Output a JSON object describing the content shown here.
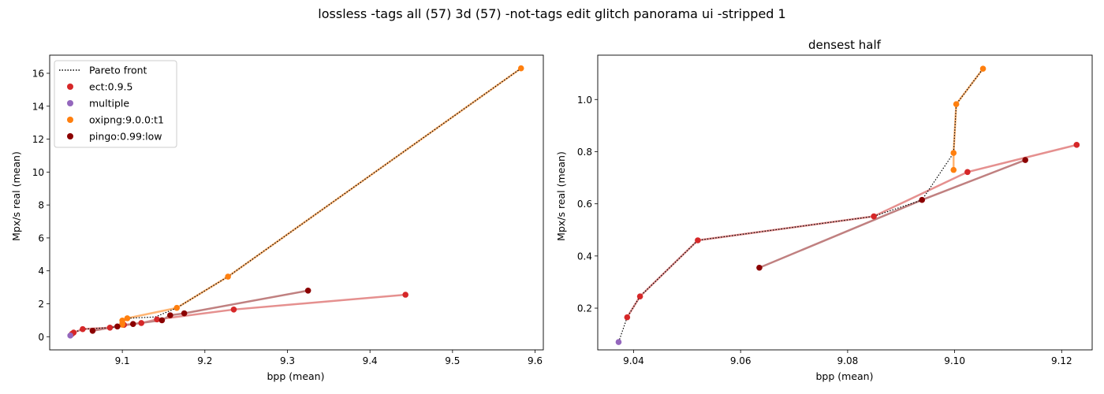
{
  "figure": {
    "suptitle": "lossless -tags all (57) 3d (57) -not-tags edit glitch panorama ui -stripped 1"
  },
  "legend": {
    "pareto_label": "Pareto front",
    "entries": [
      {
        "label": "ect:0.9.5",
        "color": "#d62728"
      },
      {
        "label": "multiple",
        "color": "#9467bd"
      },
      {
        "label": "oxipng:9.0.0:t1",
        "color": "#ff7f0e"
      },
      {
        "label": "pingo:0.99:low",
        "color": "#8b0000"
      }
    ]
  },
  "chart_data": [
    {
      "type": "scatter",
      "title": "",
      "xlabel": "bpp (mean)",
      "ylabel": "Mpx/s real (mean)",
      "xlim": [
        9.012,
        9.61
      ],
      "ylim": [
        -0.8,
        17.1
      ],
      "xticks": [
        9.1,
        9.2,
        9.3,
        9.4,
        9.5,
        9.6
      ],
      "xtick_labels": [
        "9.1",
        "9.2",
        "9.3",
        "9.4",
        "9.5",
        "9.6"
      ],
      "yticks": [
        0,
        2,
        4,
        6,
        8,
        10,
        12,
        14,
        16
      ],
      "ytick_labels": [
        "0",
        "2",
        "4",
        "6",
        "8",
        "10",
        "12",
        "14",
        "16"
      ],
      "grid": false,
      "legend_position": "upper left",
      "series": [
        {
          "name": "ect:0.9.5",
          "color": "#d62728",
          "line_color": "#e5908f",
          "x": [
            9.039,
            9.041,
            9.052,
            9.085,
            9.102,
            9.123,
            9.142,
            9.235,
            9.443
          ],
          "y": [
            0.17,
            0.25,
            0.46,
            0.55,
            0.72,
            0.83,
            1.05,
            1.65,
            2.55
          ]
        },
        {
          "name": "multiple",
          "color": "#9467bd",
          "line_color": "#9467bd",
          "x": [
            9.037
          ],
          "y": [
            0.07
          ]
        },
        {
          "name": "oxipng:9.0.0:t1",
          "color": "#ff7f0e",
          "line_color": "#ffb574",
          "x": [
            9.1,
            9.1,
            9.1,
            9.106,
            9.166,
            9.228,
            9.583
          ],
          "y": [
            0.73,
            0.8,
            0.98,
            1.12,
            1.75,
            3.65,
            16.3
          ]
        },
        {
          "name": "pingo:0.99:low",
          "color": "#8b0000",
          "line_color": "#c08080",
          "x": [
            9.064,
            9.094,
            9.113,
            9.148,
            9.158,
            9.175,
            9.325
          ],
          "y": [
            0.36,
            0.62,
            0.77,
            1.0,
            1.3,
            1.42,
            2.8
          ]
        }
      ],
      "pareto_front": {
        "x": [
          9.037,
          9.039,
          9.041,
          9.052,
          9.085,
          9.094,
          9.1,
          9.1,
          9.106,
          9.14,
          9.166,
          9.228,
          9.583
        ],
        "y": [
          0.07,
          0.17,
          0.25,
          0.46,
          0.55,
          0.62,
          0.8,
          0.98,
          1.12,
          1.2,
          1.75,
          3.65,
          16.3
        ]
      }
    },
    {
      "type": "scatter",
      "title": "densest half",
      "xlabel": "bpp (mean)",
      "ylabel": "Mpx/s real (mean)",
      "xlim": [
        9.0333,
        9.1257
      ],
      "ylim": [
        0.04,
        1.17
      ],
      "xticks": [
        9.04,
        9.06,
        9.08,
        9.1,
        9.12
      ],
      "xtick_labels": [
        "9.04",
        "9.06",
        "9.08",
        "9.10",
        "9.12"
      ],
      "yticks": [
        0.2,
        0.4,
        0.6,
        0.8,
        1.0
      ],
      "ytick_labels": [
        "0.2",
        "0.4",
        "0.6",
        "0.8",
        "1.0"
      ],
      "grid": false,
      "series": [
        {
          "name": "ect:0.9.5",
          "color": "#d62728",
          "line_color": "#e5908f",
          "x": [
            9.0388,
            9.0412,
            9.052,
            9.0849,
            9.1024,
            9.1228
          ],
          "y": [
            0.165,
            0.245,
            0.46,
            0.552,
            0.722,
            0.826
          ]
        },
        {
          "name": "multiple",
          "color": "#9467bd",
          "line_color": "#9467bd",
          "x": [
            9.0372
          ],
          "y": [
            0.07
          ]
        },
        {
          "name": "oxipng:9.0.0:t1",
          "color": "#ff7f0e",
          "line_color": "#ffb574",
          "x": [
            9.0998,
            9.0998,
            9.1003,
            9.1053
          ],
          "y": [
            0.73,
            0.795,
            0.982,
            1.118
          ]
        },
        {
          "name": "pingo:0.99:low",
          "color": "#8b0000",
          "line_color": "#c08080",
          "x": [
            9.0635,
            9.0939,
            9.1132
          ],
          "y": [
            0.355,
            0.615,
            0.768
          ]
        }
      ],
      "pareto_front": {
        "x": [
          9.0372,
          9.0388,
          9.0412,
          9.052,
          9.0849,
          9.0939,
          9.0998,
          9.1003,
          9.1053
        ],
        "y": [
          0.07,
          0.165,
          0.245,
          0.46,
          0.552,
          0.615,
          0.795,
          0.982,
          1.118
        ]
      }
    }
  ]
}
